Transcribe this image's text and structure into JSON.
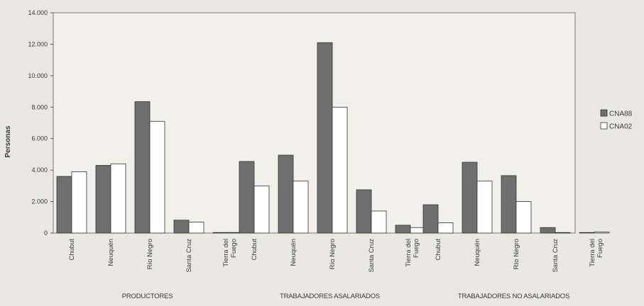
{
  "chart_data": {
    "type": "bar",
    "ylabel": "Personas",
    "ylim": [
      0,
      14000
    ],
    "yticks": [
      {
        "value": 0,
        "label": "0"
      },
      {
        "value": 2000,
        "label": "2.000"
      },
      {
        "value": 4000,
        "label": "4.000"
      },
      {
        "value": 6000,
        "label": "6.000"
      },
      {
        "value": 8000,
        "label": "8.000"
      },
      {
        "value": 10000,
        "label": "10.000"
      },
      {
        "value": 12000,
        "label": "12.000"
      },
      {
        "value": 14000,
        "label": "14.000"
      }
    ],
    "categories": [
      "Chubut",
      "Neuquén",
      "Río Negro",
      "Santa Cruz",
      "Tierra del Fuego"
    ],
    "groups": [
      {
        "name": "PRODUCTORES",
        "series": [
          {
            "name": "CNA88",
            "values": [
              3600,
              4300,
              8350,
              820,
              30
            ]
          },
          {
            "name": "CNA02",
            "values": [
              3900,
              4400,
              7100,
              700,
              20
            ]
          }
        ]
      },
      {
        "name": "TRABAJADORES ASALARIADOS",
        "series": [
          {
            "name": "CNA88",
            "values": [
              4550,
              4950,
              12100,
              2750,
              500
            ]
          },
          {
            "name": "CNA02",
            "values": [
              3000,
              3300,
              8000,
              1400,
              350
            ]
          }
        ]
      },
      {
        "name": "TRABAJADORES NO ASALARIADOS",
        "series": [
          {
            "name": "CNA88",
            "values": [
              1800,
              4500,
              3650,
              350,
              10
            ]
          },
          {
            "name": "CNA02",
            "values": [
              650,
              3300,
              2000,
              30,
              60
            ]
          }
        ]
      }
    ],
    "legend": {
      "position": "right",
      "items": [
        {
          "name": "CNA88",
          "color": "#6f6f6f"
        },
        {
          "name": "CNA02",
          "color": "#ffffff"
        }
      ]
    },
    "colors": {
      "CNA88": "#6f6f6f",
      "CNA02": "#ffffff",
      "plot_background": "#f1f0ec",
      "page_background": "#e9e8e3",
      "bar_stroke": "#333333",
      "axis": "#555555"
    },
    "grid": false
  }
}
